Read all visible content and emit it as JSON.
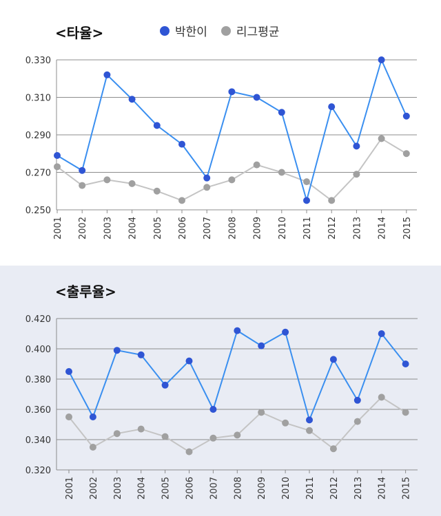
{
  "legend": {
    "player": "박한이",
    "league": "리그평균"
  },
  "colors": {
    "player": "#2f55d4",
    "player_line": "#3a8ff0",
    "league": "#a0a0a0",
    "league_line": "#c4c4c4",
    "bottom_panel_bg": "#e9ecf4"
  },
  "chart_data": [
    {
      "type": "line",
      "title": "<타율>",
      "x": [
        "2001",
        "2002",
        "2003",
        "2004",
        "2005",
        "2006",
        "2007",
        "2008",
        "2009",
        "2010",
        "2011",
        "2012",
        "2013",
        "2014",
        "2015"
      ],
      "ylim": [
        0.25,
        0.33
      ],
      "yticks": [
        "0.250",
        "0.270",
        "0.290",
        "0.310",
        "0.330"
      ],
      "grid": true,
      "legend_position": "top",
      "series": [
        {
          "name": "박한이",
          "values": [
            0.279,
            0.271,
            0.322,
            0.309,
            0.295,
            0.285,
            0.267,
            0.313,
            0.31,
            0.302,
            0.255,
            0.305,
            0.284,
            0.33,
            0.3
          ]
        },
        {
          "name": "리그평균",
          "values": [
            0.273,
            0.263,
            0.266,
            0.264,
            0.26,
            0.255,
            0.262,
            0.266,
            0.274,
            0.27,
            0.265,
            0.255,
            0.269,
            0.288,
            0.28
          ]
        }
      ]
    },
    {
      "type": "line",
      "title": "<출루율>",
      "x": [
        "2001",
        "2002",
        "2003",
        "2004",
        "2005",
        "2006",
        "2007",
        "2008",
        "2009",
        "2010",
        "2011",
        "2012",
        "2013",
        "2014",
        "2015"
      ],
      "ylim": [
        0.32,
        0.42
      ],
      "yticks": [
        "0.320",
        "0.340",
        "0.360",
        "0.380",
        "0.400",
        "0.420"
      ],
      "grid": true,
      "series": [
        {
          "name": "박한이",
          "values": [
            0.385,
            0.355,
            0.399,
            0.396,
            0.376,
            0.392,
            0.36,
            0.412,
            0.402,
            0.411,
            0.353,
            0.393,
            0.366,
            0.41,
            0.39
          ]
        },
        {
          "name": "리그평균",
          "values": [
            0.355,
            0.335,
            0.344,
            0.347,
            0.342,
            0.332,
            0.341,
            0.343,
            0.358,
            0.351,
            0.346,
            0.334,
            0.352,
            0.368,
            0.358
          ]
        }
      ]
    }
  ]
}
